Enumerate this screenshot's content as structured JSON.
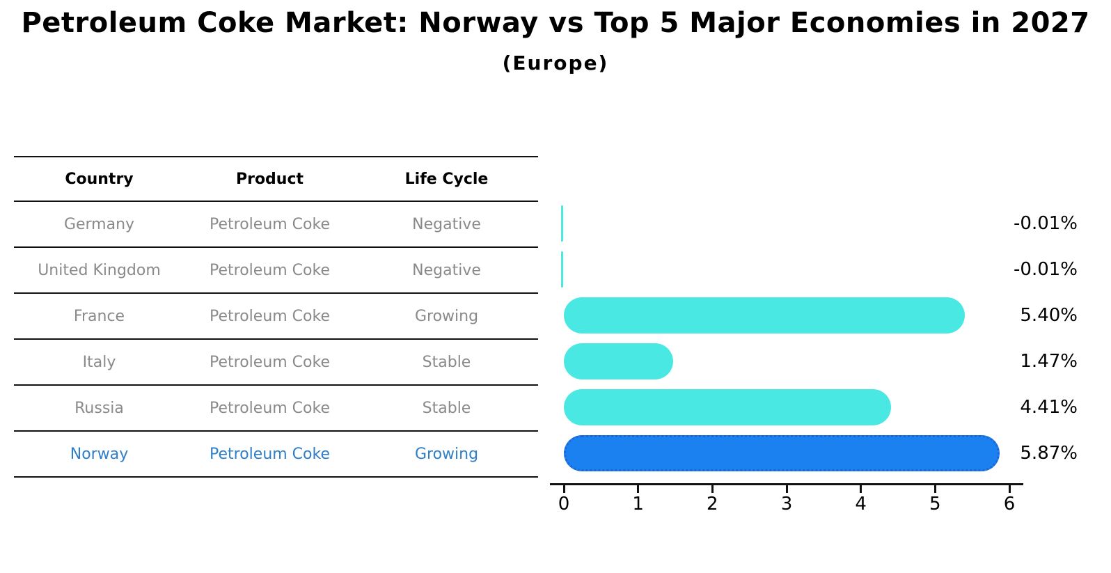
{
  "title": "Petroleum Coke Market: Norway vs Top 5 Major Economies in 2027",
  "subtitle": "(Europe)",
  "table": {
    "headers": [
      "Country",
      "Product",
      "Life Cycle"
    ],
    "rows": [
      {
        "country": "Germany",
        "product": "Petroleum Coke",
        "life_cycle": "Negative",
        "highlight": false
      },
      {
        "country": "United Kingdom",
        "product": "Petroleum Coke",
        "life_cycle": "Negative",
        "highlight": false
      },
      {
        "country": "France",
        "product": "Petroleum Coke",
        "life_cycle": "Growing",
        "highlight": false
      },
      {
        "country": "Italy",
        "product": "Petroleum Coke",
        "life_cycle": "Stable",
        "highlight": false
      },
      {
        "country": "Russia",
        "product": "Petroleum Coke",
        "life_cycle": "Stable",
        "highlight": false
      },
      {
        "country": "Norway",
        "product": "Petroleum Coke",
        "life_cycle": "Growing",
        "highlight": true
      }
    ]
  },
  "chart_data": {
    "type": "bar",
    "orientation": "horizontal",
    "title": "Petroleum Coke Market: Norway vs Top 5 Major Economies in 2027 (Europe)",
    "categories": [
      "Germany",
      "United Kingdom",
      "France",
      "Italy",
      "Russia",
      "Norway"
    ],
    "values": [
      -0.01,
      -0.01,
      5.4,
      1.47,
      4.41,
      5.87
    ],
    "value_labels": [
      "-0.01%",
      "-0.01%",
      "5.40%",
      "1.47%",
      "4.41%",
      "5.87%"
    ],
    "x_ticks": [
      0,
      1,
      2,
      3,
      4,
      5,
      6
    ],
    "xlim": [
      0,
      6
    ],
    "grid": false,
    "legend": "none",
    "bar_color": "#4ae8e2",
    "highlight_bar_color": "#1b80f0",
    "highlight_border_color": "#1f66d4",
    "highlight_index": 5
  },
  "colors": {
    "bar_cyan": "#4ae8e2",
    "bar_blue": "#1b80f0",
    "highlight_text": "#2e7ec9",
    "table_text": "#8a8a8a",
    "heading_text": "#000000",
    "axis": "#111111"
  }
}
